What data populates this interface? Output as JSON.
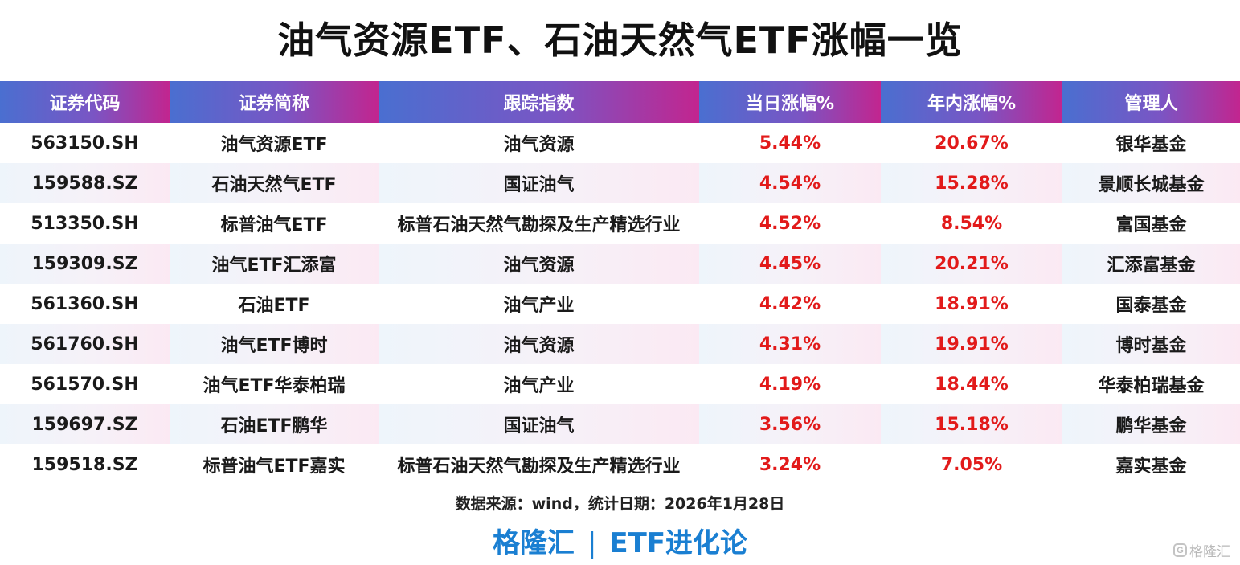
{
  "title": "油气资源ETF、石油天然气ETF涨幅一览",
  "table": {
    "headers": [
      "证券代码",
      "证券简称",
      "跟踪指数",
      "当日涨幅%",
      "年内涨幅%",
      "管理人"
    ],
    "rows": [
      [
        "563150.SH",
        "油气资源ETF",
        "油气资源",
        "5.44%",
        "20.67%",
        "银华基金"
      ],
      [
        "159588.SZ",
        "石油天然气ETF",
        "国证油气",
        "4.54%",
        "15.28%",
        "景顺长城基金"
      ],
      [
        "513350.SH",
        "标普油气ETF",
        "标普石油天然气勘探及生产精选行业",
        "4.52%",
        "8.54%",
        "富国基金"
      ],
      [
        "159309.SZ",
        "油气ETF汇添富",
        "油气资源",
        "4.45%",
        "20.21%",
        "汇添富基金"
      ],
      [
        "561360.SH",
        "石油ETF",
        "油气产业",
        "4.42%",
        "18.91%",
        "国泰基金"
      ],
      [
        "561760.SH",
        "油气ETF博时",
        "油气资源",
        "4.31%",
        "19.91%",
        "博时基金"
      ],
      [
        "561570.SH",
        "油气ETF华泰柏瑞",
        "油气产业",
        "4.19%",
        "18.44%",
        "华泰柏瑞基金"
      ],
      [
        "159697.SZ",
        "石油ETF鹏华",
        "国证油气",
        "3.56%",
        "15.18%",
        "鹏华基金"
      ],
      [
        "159518.SZ",
        "标普油气ETF嘉实",
        "标普石油天然气勘探及生产精选行业",
        "3.24%",
        "7.05%",
        "嘉实基金"
      ]
    ]
  },
  "source": "数据来源：wind，统计日期：2026年1月28日",
  "brand": {
    "left": "格隆汇",
    "separator": "|",
    "right": "ETF进化论"
  },
  "watermark": {
    "icon_name": "gelonghui-logo-icon",
    "icon_glyph": "G",
    "text": "格隆汇"
  },
  "colors": {
    "header_gradient_start": "#4a6fd0",
    "header_gradient_end": "#c2258f",
    "gain_red": "#e21a1a",
    "brand_blue": "#1a7fd2"
  }
}
